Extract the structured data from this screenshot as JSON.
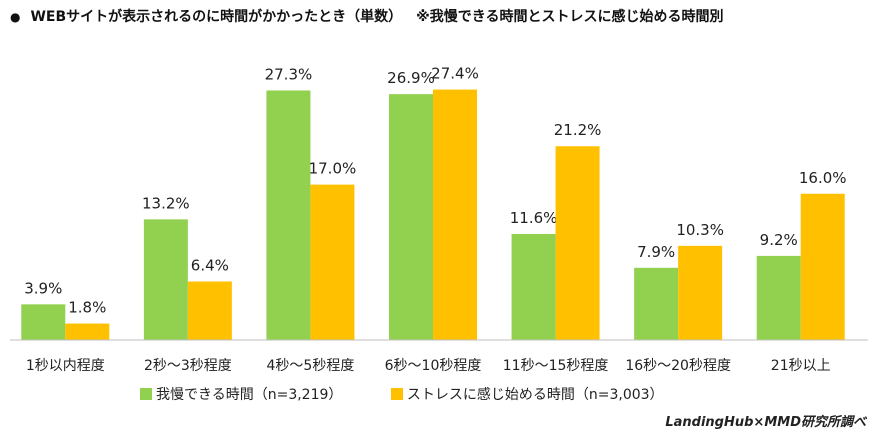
{
  "header": {
    "bullet": "●",
    "title": "WEBサイトが表示されるのに時間がかかったとき（単数）",
    "note": "※我慢できる時間とストレスに感じ始める時間別"
  },
  "credit": "LandingHub×MMD研究所調べ",
  "colors": {
    "green": "#92D050",
    "yellow": "#FFC000",
    "axis": "#BFBFBF"
  },
  "chart_data": {
    "type": "bar",
    "title": "WEBサイトが表示されるのに時間がかかったとき（単数）",
    "categories": [
      "1秒以内程度",
      "2秒～3秒程度",
      "4秒～5秒程度",
      "6秒～10秒程度",
      "11秒～15秒程度",
      "16秒～20秒程度",
      "21秒以上"
    ],
    "series": [
      {
        "name": "我慢できる時間（n=3,219）",
        "values": [
          3.9,
          13.2,
          27.3,
          26.9,
          11.6,
          7.9,
          9.2
        ],
        "labels": [
          "3.9%",
          "13.2%",
          "27.3%",
          "26.9%",
          "11.6%",
          "7.9%",
          "9.2%"
        ],
        "color": "#92D050"
      },
      {
        "name": "ストレスに感じ始める時間（n=3,003）",
        "values": [
          1.8,
          6.4,
          17.0,
          27.4,
          21.2,
          10.3,
          16.0
        ],
        "labels": [
          "1.8%",
          "6.4%",
          "17.0%",
          "27.4%",
          "21.2%",
          "10.3%",
          "16.0%"
        ],
        "color": "#FFC000"
      }
    ],
    "ylim": [
      0,
      30
    ],
    "grid": false,
    "legend": "bottom"
  }
}
